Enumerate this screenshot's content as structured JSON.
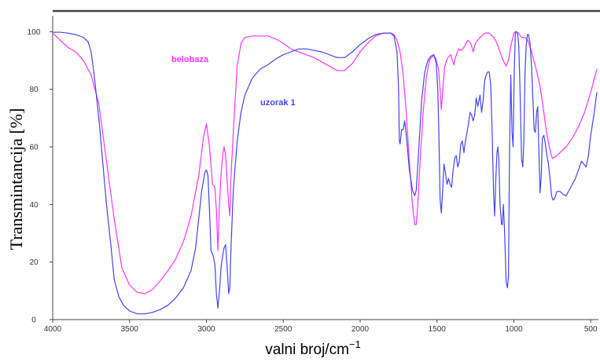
{
  "chart_data": {
    "type": "line",
    "xlabel": "valni broj/cm",
    "xlabel_superscript": "−1",
    "ylabel": "Transmintancija [%]",
    "xlim": [
      4000,
      450
    ],
    "ylim": [
      0,
      105
    ],
    "x_ticks": [
      4000,
      3500,
      3000,
      2500,
      2000,
      1500,
      1000,
      500
    ],
    "y_ticks": [
      0,
      20,
      40,
      60,
      80,
      100
    ],
    "grid": false,
    "series": [
      {
        "name": "belobaza",
        "color": "#ff33ff",
        "points": [
          [
            4000,
            99.5
          ],
          [
            3950,
            97
          ],
          [
            3900,
            94.5
          ],
          [
            3850,
            93
          ],
          [
            3800,
            90
          ],
          [
            3750,
            85
          ],
          [
            3700,
            75
          ],
          [
            3650,
            55
          ],
          [
            3600,
            35
          ],
          [
            3550,
            18
          ],
          [
            3500,
            12
          ],
          [
            3450,
            9.5
          ],
          [
            3400,
            9
          ],
          [
            3350,
            10.5
          ],
          [
            3300,
            13.5
          ],
          [
            3250,
            17
          ],
          [
            3200,
            21
          ],
          [
            3150,
            27
          ],
          [
            3100,
            36
          ],
          [
            3050,
            50
          ],
          [
            3020,
            63
          ],
          [
            3000,
            68
          ],
          [
            2980,
            60
          ],
          [
            2960,
            47
          ],
          [
            2945,
            46
          ],
          [
            2935,
            38
          ],
          [
            2925,
            24
          ],
          [
            2915,
            40
          ],
          [
            2905,
            50
          ],
          [
            2895,
            57
          ],
          [
            2885,
            60
          ],
          [
            2875,
            57
          ],
          [
            2865,
            48
          ],
          [
            2855,
            40
          ],
          [
            2848,
            36
          ],
          [
            2840,
            50
          ],
          [
            2820,
            70
          ],
          [
            2800,
            88
          ],
          [
            2775,
            96
          ],
          [
            2750,
            98
          ],
          [
            2700,
            98.5
          ],
          [
            2650,
            98.5
          ],
          [
            2600,
            98.5
          ],
          [
            2550,
            97.5
          ],
          [
            2500,
            96
          ],
          [
            2450,
            94
          ],
          [
            2400,
            93
          ],
          [
            2350,
            92
          ],
          [
            2300,
            91
          ],
          [
            2250,
            89.5
          ],
          [
            2200,
            88
          ],
          [
            2150,
            86.5
          ],
          [
            2100,
            86.5
          ],
          [
            2050,
            89
          ],
          [
            2000,
            93
          ],
          [
            1950,
            96
          ],
          [
            1900,
            98.5
          ],
          [
            1850,
            99.5
          ],
          [
            1800,
            99.5
          ],
          [
            1780,
            99
          ],
          [
            1760,
            97
          ],
          [
            1740,
            93
          ],
          [
            1720,
            85
          ],
          [
            1700,
            72
          ],
          [
            1680,
            55
          ],
          [
            1660,
            40
          ],
          [
            1645,
            33
          ],
          [
            1635,
            33
          ],
          [
            1625,
            40
          ],
          [
            1610,
            55
          ],
          [
            1590,
            72
          ],
          [
            1570,
            84
          ],
          [
            1550,
            90
          ],
          [
            1530,
            91.5
          ],
          [
            1510,
            91
          ],
          [
            1490,
            87
          ],
          [
            1480,
            80
          ],
          [
            1472,
            73
          ],
          [
            1462,
            80
          ],
          [
            1450,
            88
          ],
          [
            1430,
            91
          ],
          [
            1410,
            92
          ],
          [
            1400,
            90
          ],
          [
            1390,
            88.5
          ],
          [
            1380,
            91
          ],
          [
            1360,
            94
          ],
          [
            1340,
            93.5
          ],
          [
            1320,
            95
          ],
          [
            1300,
            97
          ],
          [
            1280,
            96
          ],
          [
            1265,
            93
          ],
          [
            1250,
            96
          ],
          [
            1220,
            98
          ],
          [
            1190,
            99.5
          ],
          [
            1160,
            99.5
          ],
          [
            1130,
            98
          ],
          [
            1110,
            96
          ],
          [
            1090,
            93
          ],
          [
            1070,
            90
          ],
          [
            1050,
            88
          ],
          [
            1035,
            90
          ],
          [
            1020,
            95
          ],
          [
            1000,
            99.5
          ],
          [
            985,
            100
          ],
          [
            970,
            99.5
          ],
          [
            950,
            98
          ],
          [
            930,
            98
          ],
          [
            910,
            97
          ],
          [
            890,
            94
          ],
          [
            870,
            90
          ],
          [
            850,
            86
          ],
          [
            830,
            81
          ],
          [
            810,
            74
          ],
          [
            790,
            66
          ],
          [
            770,
            60
          ],
          [
            750,
            56
          ],
          [
            730,
            56.5
          ],
          [
            700,
            58
          ],
          [
            660,
            60
          ],
          [
            620,
            63
          ],
          [
            580,
            67
          ],
          [
            540,
            72
          ],
          [
            500,
            79
          ],
          [
            460,
            87
          ]
        ]
      },
      {
        "name": "uzorak 1",
        "color": "#4444ee",
        "points": [
          [
            4000,
            99.8
          ],
          [
            3950,
            99.8
          ],
          [
            3900,
            99.5
          ],
          [
            3850,
            99
          ],
          [
            3800,
            98
          ],
          [
            3770,
            96.5
          ],
          [
            3750,
            93
          ],
          [
            3730,
            85
          ],
          [
            3700,
            70
          ],
          [
            3680,
            58
          ],
          [
            3650,
            40
          ],
          [
            3620,
            25
          ],
          [
            3600,
            14
          ],
          [
            3570,
            8
          ],
          [
            3540,
            5
          ],
          [
            3500,
            3
          ],
          [
            3450,
            2
          ],
          [
            3400,
            2
          ],
          [
            3350,
            2.5
          ],
          [
            3300,
            3.5
          ],
          [
            3250,
            5
          ],
          [
            3200,
            7.5
          ],
          [
            3150,
            11
          ],
          [
            3100,
            17
          ],
          [
            3070,
            25
          ],
          [
            3050,
            35
          ],
          [
            3030,
            45
          ],
          [
            3010,
            51
          ],
          [
            3000,
            52
          ],
          [
            2990,
            50
          ],
          [
            2980,
            38
          ],
          [
            2970,
            24
          ],
          [
            2955,
            22
          ],
          [
            2945,
            19
          ],
          [
            2935,
            9
          ],
          [
            2925,
            4
          ],
          [
            2915,
            10
          ],
          [
            2905,
            18
          ],
          [
            2895,
            22
          ],
          [
            2885,
            25
          ],
          [
            2875,
            26
          ],
          [
            2865,
            18
          ],
          [
            2855,
            9
          ],
          [
            2848,
            11
          ],
          [
            2840,
            25
          ],
          [
            2825,
            45
          ],
          [
            2800,
            62
          ],
          [
            2775,
            72
          ],
          [
            2750,
            78
          ],
          [
            2700,
            84
          ],
          [
            2650,
            87
          ],
          [
            2600,
            88.5
          ],
          [
            2550,
            90.5
          ],
          [
            2500,
            92
          ],
          [
            2450,
            93
          ],
          [
            2400,
            94
          ],
          [
            2350,
            94
          ],
          [
            2300,
            93.5
          ],
          [
            2250,
            93
          ],
          [
            2200,
            92
          ],
          [
            2150,
            91
          ],
          [
            2100,
            91
          ],
          [
            2050,
            93
          ],
          [
            2000,
            95.5
          ],
          [
            1950,
            97.5
          ],
          [
            1900,
            99
          ],
          [
            1850,
            99.5
          ],
          [
            1800,
            99.5
          ],
          [
            1780,
            98.5
          ],
          [
            1760,
            93
          ],
          [
            1750,
            80
          ],
          [
            1745,
            62
          ],
          [
            1740,
            61
          ],
          [
            1730,
            66
          ],
          [
            1720,
            66
          ],
          [
            1710,
            69
          ],
          [
            1700,
            64
          ],
          [
            1680,
            52
          ],
          [
            1660,
            45
          ],
          [
            1645,
            43
          ],
          [
            1635,
            45
          ],
          [
            1620,
            58
          ],
          [
            1600,
            76
          ],
          [
            1580,
            86
          ],
          [
            1560,
            90
          ],
          [
            1540,
            91.5
          ],
          [
            1520,
            92
          ],
          [
            1505,
            89
          ],
          [
            1495,
            80
          ],
          [
            1488,
            65
          ],
          [
            1480,
            42
          ],
          [
            1472,
            37
          ],
          [
            1464,
            44
          ],
          [
            1455,
            54
          ],
          [
            1445,
            51
          ],
          [
            1435,
            47
          ],
          [
            1425,
            49
          ],
          [
            1415,
            47
          ],
          [
            1405,
            46
          ],
          [
            1395,
            52
          ],
          [
            1385,
            56
          ],
          [
            1375,
            57
          ],
          [
            1365,
            53
          ],
          [
            1355,
            55
          ],
          [
            1345,
            61
          ],
          [
            1335,
            62
          ],
          [
            1325,
            58
          ],
          [
            1315,
            62
          ],
          [
            1305,
            65
          ],
          [
            1295,
            68
          ],
          [
            1285,
            72
          ],
          [
            1275,
            71
          ],
          [
            1265,
            69
          ],
          [
            1255,
            71
          ],
          [
            1245,
            77
          ],
          [
            1235,
            74
          ],
          [
            1220,
            78
          ],
          [
            1210,
            72
          ],
          [
            1200,
            76
          ],
          [
            1190,
            83
          ],
          [
            1180,
            85
          ],
          [
            1170,
            86
          ],
          [
            1160,
            86
          ],
          [
            1150,
            81
          ],
          [
            1140,
            62
          ],
          [
            1132,
            44
          ],
          [
            1125,
            36
          ],
          [
            1118,
            48
          ],
          [
            1110,
            58
          ],
          [
            1104,
            60
          ],
          [
            1098,
            56
          ],
          [
            1090,
            40
          ],
          [
            1080,
            33
          ],
          [
            1075,
            33
          ],
          [
            1068,
            40
          ],
          [
            1060,
            30
          ],
          [
            1050,
            13
          ],
          [
            1042,
            11
          ],
          [
            1035,
            15
          ],
          [
            1028,
            60
          ],
          [
            1020,
            85
          ],
          [
            1012,
            65
          ],
          [
            1005,
            60
          ],
          [
            998,
            85
          ],
          [
            990,
            100
          ],
          [
            982,
            100
          ],
          [
            975,
            99
          ],
          [
            968,
            95
          ],
          [
            960,
            80
          ],
          [
            950,
            56
          ],
          [
            942,
            53
          ],
          [
            935,
            62
          ],
          [
            928,
            85
          ],
          [
            920,
            95
          ],
          [
            912,
            99
          ],
          [
            905,
            99
          ],
          [
            895,
            96
          ],
          [
            885,
            88
          ],
          [
            875,
            75
          ],
          [
            868,
            66
          ],
          [
            860,
            65
          ],
          [
            852,
            72
          ],
          [
            845,
            74
          ],
          [
            838,
            60
          ],
          [
            830,
            44
          ],
          [
            822,
            50
          ],
          [
            815,
            63
          ],
          [
            805,
            64
          ],
          [
            795,
            61
          ],
          [
            785,
            57
          ],
          [
            775,
            54
          ],
          [
            765,
            49
          ],
          [
            755,
            43
          ],
          [
            745,
            41.5
          ],
          [
            735,
            42
          ],
          [
            720,
            44.5
          ],
          [
            700,
            44.5
          ],
          [
            680,
            43.5
          ],
          [
            660,
            43
          ],
          [
            640,
            45
          ],
          [
            620,
            47
          ],
          [
            600,
            49
          ],
          [
            580,
            52
          ],
          [
            560,
            55
          ],
          [
            545,
            54
          ],
          [
            530,
            53
          ],
          [
            515,
            57
          ],
          [
            500,
            64
          ],
          [
            480,
            71
          ],
          [
            460,
            79
          ]
        ]
      }
    ]
  }
}
